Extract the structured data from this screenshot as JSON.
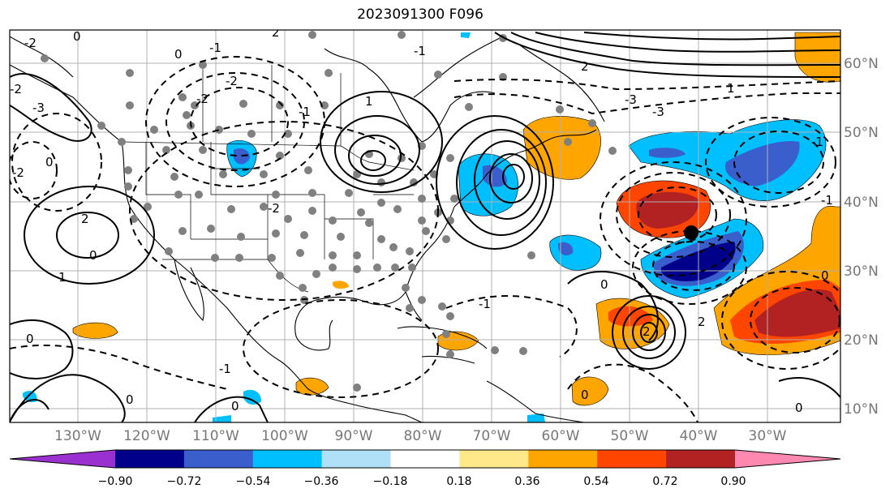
{
  "title": "2023091300 F096",
  "longitude_labels": [
    "130°W",
    "120°W",
    "110°W",
    "100°W",
    "90°W",
    "80°W",
    "70°W",
    "60°W",
    "50°W",
    "40°W",
    "30°W"
  ],
  "latitude_labels": [
    "60°N",
    "50°N",
    "40°N",
    "30°N",
    "20°N",
    "10°N"
  ],
  "colorbar": {
    "tick_labels": [
      "−0.90",
      "−0.72",
      "−0.54",
      "−0.36",
      "−0.18",
      "0.18",
      "0.36",
      "0.54",
      "0.72",
      "0.90"
    ],
    "colors": [
      "#9b30d0",
      "#00008b",
      "#3a5fcd",
      "#00bfff",
      "#b0e0f8",
      "#ffffff",
      "#ffe88a",
      "#ffa500",
      "#ff4500",
      "#b22222",
      "#ff88b0"
    ]
  },
  "contour_labels": [
    "-2",
    "-1",
    "0",
    "-2",
    "-2",
    "-3",
    "-3",
    "2",
    "1",
    "-1",
    "2",
    "0",
    "1",
    "2",
    "0",
    "-2",
    "-2",
    "0",
    "-1",
    "0",
    "0",
    "0",
    "-1",
    "0",
    "2",
    "0",
    "-1",
    "-1",
    "-2",
    "-3",
    "2",
    "0",
    "-1",
    "0",
    "1"
  ],
  "marker": "storm-center-marker"
}
